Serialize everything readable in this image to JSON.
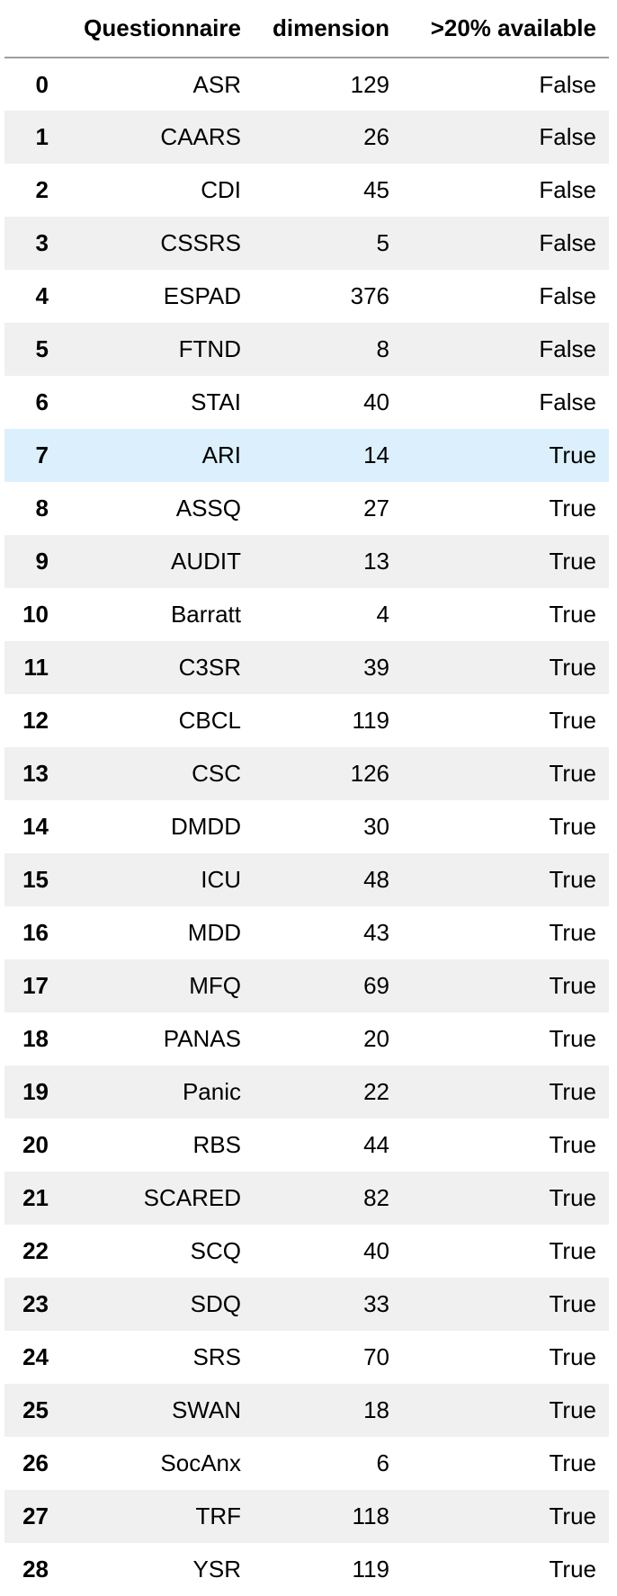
{
  "table": {
    "columns": [
      "",
      "Questionnaire",
      "dimension",
      ">20% available"
    ],
    "rows": [
      {
        "index": "0",
        "questionnaire": "ASR",
        "dimension": "129",
        "available": "False"
      },
      {
        "index": "1",
        "questionnaire": "CAARS",
        "dimension": "26",
        "available": "False"
      },
      {
        "index": "2",
        "questionnaire": "CDI",
        "dimension": "45",
        "available": "False"
      },
      {
        "index": "3",
        "questionnaire": "CSSRS",
        "dimension": "5",
        "available": "False"
      },
      {
        "index": "4",
        "questionnaire": "ESPAD",
        "dimension": "376",
        "available": "False"
      },
      {
        "index": "5",
        "questionnaire": "FTND",
        "dimension": "8",
        "available": "False"
      },
      {
        "index": "6",
        "questionnaire": "STAI",
        "dimension": "40",
        "available": "False"
      },
      {
        "index": "7",
        "questionnaire": "ARI",
        "dimension": "14",
        "available": "True"
      },
      {
        "index": "8",
        "questionnaire": "ASSQ",
        "dimension": "27",
        "available": "True"
      },
      {
        "index": "9",
        "questionnaire": "AUDIT",
        "dimension": "13",
        "available": "True"
      },
      {
        "index": "10",
        "questionnaire": "Barratt",
        "dimension": "4",
        "available": "True"
      },
      {
        "index": "11",
        "questionnaire": "C3SR",
        "dimension": "39",
        "available": "True"
      },
      {
        "index": "12",
        "questionnaire": "CBCL",
        "dimension": "119",
        "available": "True"
      },
      {
        "index": "13",
        "questionnaire": "CSC",
        "dimension": "126",
        "available": "True"
      },
      {
        "index": "14",
        "questionnaire": "DMDD",
        "dimension": "30",
        "available": "True"
      },
      {
        "index": "15",
        "questionnaire": "ICU",
        "dimension": "48",
        "available": "True"
      },
      {
        "index": "16",
        "questionnaire": "MDD",
        "dimension": "43",
        "available": "True"
      },
      {
        "index": "17",
        "questionnaire": "MFQ",
        "dimension": "69",
        "available": "True"
      },
      {
        "index": "18",
        "questionnaire": "PANAS",
        "dimension": "20",
        "available": "True"
      },
      {
        "index": "19",
        "questionnaire": "Panic",
        "dimension": "22",
        "available": "True"
      },
      {
        "index": "20",
        "questionnaire": "RBS",
        "dimension": "44",
        "available": "True"
      },
      {
        "index": "21",
        "questionnaire": "SCARED",
        "dimension": "82",
        "available": "True"
      },
      {
        "index": "22",
        "questionnaire": "SCQ",
        "dimension": "40",
        "available": "True"
      },
      {
        "index": "23",
        "questionnaire": "SDQ",
        "dimension": "33",
        "available": "True"
      },
      {
        "index": "24",
        "questionnaire": "SRS",
        "dimension": "70",
        "available": "True"
      },
      {
        "index": "25",
        "questionnaire": "SWAN",
        "dimension": "18",
        "available": "True"
      },
      {
        "index": "26",
        "questionnaire": "SocAnx",
        "dimension": "6",
        "available": "True"
      },
      {
        "index": "27",
        "questionnaire": "TRF",
        "dimension": "118",
        "available": "True"
      },
      {
        "index": "28",
        "questionnaire": "YSR",
        "dimension": "119",
        "available": "True"
      }
    ],
    "hovered_row": 7
  },
  "colors": {
    "background": "#ffffff",
    "stripe": "#f0f0f0",
    "hover": "#dbf0fc",
    "header_rule": "#9e9e9e",
    "text": "#000000"
  }
}
